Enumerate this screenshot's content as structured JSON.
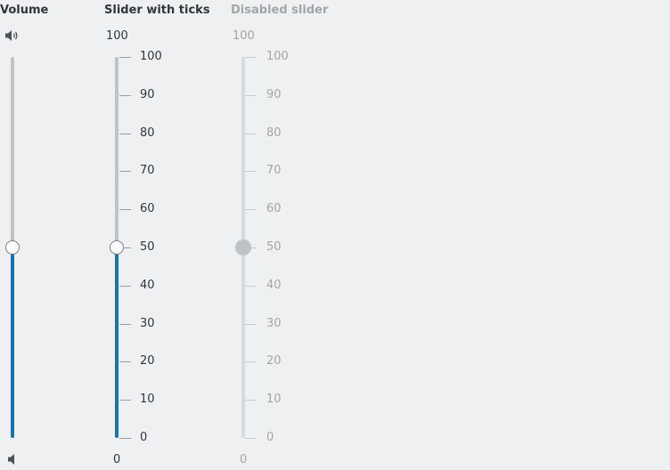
{
  "volume": {
    "title": "Volume",
    "value": 50,
    "min": 0,
    "max": 100,
    "top_icon": "volume-high-icon",
    "bottom_icon": "volume-low-icon"
  },
  "ticks_slider": {
    "title": "Slider with ticks",
    "value": 50,
    "min": 0,
    "max": 100,
    "max_label": "100",
    "min_label": "0",
    "ticks": [
      "100",
      "90",
      "80",
      "70",
      "60",
      "50",
      "40",
      "30",
      "20",
      "10",
      "0"
    ]
  },
  "disabled_slider": {
    "title": "Disabled slider",
    "value": 50,
    "min": 0,
    "max": 100,
    "max_label": "100",
    "min_label": "0",
    "ticks": [
      "100",
      "90",
      "80",
      "70",
      "60",
      "50",
      "40",
      "30",
      "20",
      "10",
      "0"
    ]
  },
  "colors": {
    "background": "#eff0f1",
    "accent": "#1a73ad",
    "groove": "#bdc3c7",
    "text": "#31363b",
    "disabled_text": "#a3a6a8"
  }
}
